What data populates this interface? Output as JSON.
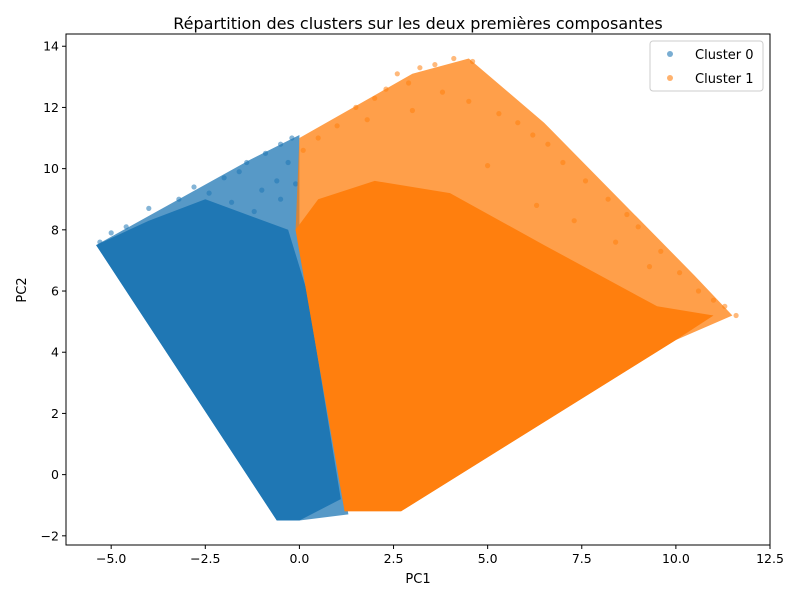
{
  "chart_data": {
    "type": "scatter",
    "title": "Répartition des clusters sur les deux premières composantes",
    "xlabel": "PC1",
    "ylabel": "PC2",
    "xlim": [
      -6.2,
      12.5
    ],
    "ylim": [
      -2.3,
      14.4
    ],
    "xticks": [
      -5.0,
      -2.5,
      0.0,
      2.5,
      5.0,
      7.5,
      10.0,
      12.5
    ],
    "xtick_labels": [
      "−5.0",
      "−2.5",
      "0.0",
      "2.5",
      "5.0",
      "7.5",
      "10.0",
      "12.5"
    ],
    "yticks": [
      -2,
      0,
      2,
      4,
      6,
      8,
      10,
      12,
      14
    ],
    "ytick_labels": [
      "−2",
      "0",
      "2",
      "4",
      "6",
      "8",
      "10",
      "12",
      "14"
    ],
    "grid": false,
    "legend_position": "top-right",
    "series": [
      {
        "name": "Cluster 0",
        "color": "#1f77b4",
        "region": [
          [
            -5.4,
            7.5
          ],
          [
            -1.3,
            10.3
          ],
          [
            0.0,
            11.1
          ],
          [
            0.0,
            8.0
          ],
          [
            1.3,
            -1.3
          ],
          [
            0.0,
            -1.5
          ],
          [
            -0.6,
            -1.5
          ]
        ],
        "core": [
          [
            -5.4,
            7.5
          ],
          [
            -4.0,
            8.3
          ],
          [
            -2.5,
            9.0
          ],
          [
            -0.3,
            8.0
          ],
          [
            0.2,
            6.0
          ],
          [
            1.1,
            -0.8
          ],
          [
            0.0,
            -1.5
          ],
          [
            -0.6,
            -1.5
          ]
        ],
        "outliers": [
          [
            -4.0,
            8.7
          ],
          [
            -3.2,
            9.0
          ],
          [
            -2.8,
            9.4
          ],
          [
            -2.0,
            9.7
          ],
          [
            -1.4,
            10.2
          ],
          [
            -0.9,
            10.5
          ],
          [
            -0.5,
            10.8
          ],
          [
            -0.2,
            11.0
          ],
          [
            -1.0,
            9.3
          ],
          [
            -0.6,
            9.6
          ],
          [
            -1.8,
            8.9
          ],
          [
            -0.3,
            10.2
          ],
          [
            -2.4,
            9.2
          ],
          [
            -1.2,
            8.6
          ],
          [
            -5.3,
            7.6
          ],
          [
            -5.0,
            7.9
          ],
          [
            -4.6,
            8.1
          ],
          [
            -0.5,
            9.0
          ],
          [
            -1.6,
            9.9
          ],
          [
            -0.1,
            9.5
          ]
        ]
      },
      {
        "name": "Cluster 1",
        "color": "#ff7f0e",
        "region": [
          [
            0.0,
            11.0
          ],
          [
            3.0,
            13.1
          ],
          [
            4.5,
            13.6
          ],
          [
            6.5,
            11.5
          ],
          [
            10.5,
            6.5
          ],
          [
            11.5,
            5.2
          ],
          [
            10.0,
            4.4
          ],
          [
            2.7,
            -1.2
          ],
          [
            1.2,
            -1.2
          ],
          [
            -0.1,
            8.0
          ]
        ],
        "core": [
          [
            -0.1,
            8.0
          ],
          [
            0.5,
            9.0
          ],
          [
            2.0,
            9.6
          ],
          [
            4.0,
            9.2
          ],
          [
            6.5,
            7.5
          ],
          [
            9.5,
            5.5
          ],
          [
            11.0,
            5.2
          ],
          [
            10.0,
            4.4
          ],
          [
            2.7,
            -1.2
          ],
          [
            1.2,
            -1.2
          ]
        ],
        "outliers": [
          [
            2.6,
            13.1
          ],
          [
            2.9,
            12.8
          ],
          [
            3.2,
            13.3
          ],
          [
            3.6,
            13.4
          ],
          [
            4.1,
            13.6
          ],
          [
            4.6,
            13.5
          ],
          [
            2.0,
            12.3
          ],
          [
            1.5,
            12.0
          ],
          [
            2.3,
            12.6
          ],
          [
            3.8,
            12.5
          ],
          [
            4.5,
            12.2
          ],
          [
            5.3,
            11.8
          ],
          [
            5.8,
            11.5
          ],
          [
            6.2,
            11.1
          ],
          [
            6.6,
            10.8
          ],
          [
            7.0,
            10.2
          ],
          [
            7.6,
            9.6
          ],
          [
            8.2,
            9.0
          ],
          [
            8.7,
            8.5
          ],
          [
            9.0,
            8.1
          ],
          [
            9.6,
            7.3
          ],
          [
            10.1,
            6.6
          ],
          [
            10.6,
            6.0
          ],
          [
            11.0,
            5.7
          ],
          [
            11.3,
            5.5
          ],
          [
            11.6,
            5.2
          ],
          [
            1.0,
            11.4
          ],
          [
            0.5,
            11.0
          ],
          [
            0.1,
            10.6
          ],
          [
            1.8,
            11.6
          ],
          [
            3.0,
            11.9
          ],
          [
            6.3,
            8.8
          ],
          [
            7.3,
            8.3
          ],
          [
            5.0,
            10.1
          ],
          [
            8.4,
            7.6
          ],
          [
            9.3,
            6.8
          ]
        ]
      }
    ]
  }
}
